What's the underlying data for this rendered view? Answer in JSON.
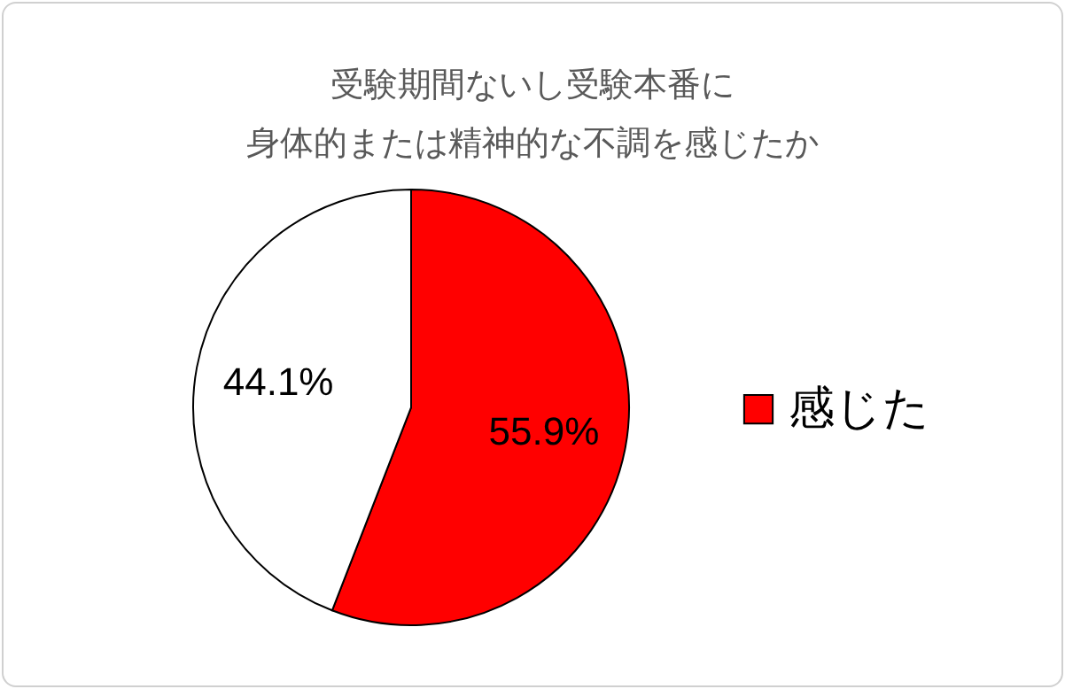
{
  "chart_data": {
    "type": "pie",
    "title": "受験期間ないし受験本番に",
    "subtitle": "身体的または精神的な不調を感じたか",
    "categories": [
      "感じた",
      null
    ],
    "values": [
      55.9,
      44.1
    ],
    "colors": [
      "#ff0000",
      "#ffffff"
    ],
    "value_labels": [
      "55.9%",
      "44.1%"
    ],
    "legend": "right"
  }
}
